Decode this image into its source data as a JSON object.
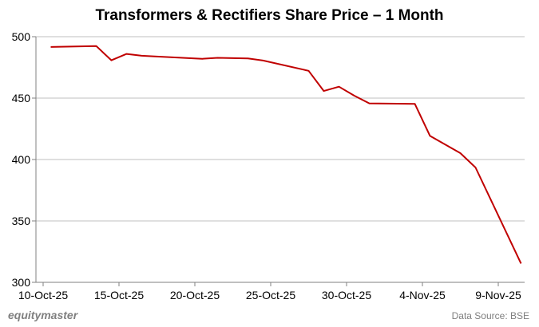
{
  "chart_data": {
    "type": "line",
    "title": "Transformers & Rectifiers Share Price – 1 Month",
    "xlabel": "",
    "ylabel": "",
    "ylim": [
      300,
      500
    ],
    "yticks": [
      "300",
      "350",
      "400",
      "450",
      "500"
    ],
    "xlim": [
      "2025-10-10",
      "2025-11-10"
    ],
    "xticks": [
      {
        "date": "2025-10-10",
        "label": "10-Oct-25"
      },
      {
        "date": "2025-10-15",
        "label": "15-Oct-25"
      },
      {
        "date": "2025-10-20",
        "label": "20-Oct-25"
      },
      {
        "date": "2025-10-25",
        "label": "25-Oct-25"
      },
      {
        "date": "2025-10-30",
        "label": "30-Oct-25"
      },
      {
        "date": "2025-11-04",
        "label": "4-Nov-25"
      },
      {
        "date": "2025-11-09",
        "label": "9-Nov-25"
      }
    ],
    "grid": "horizontal",
    "line_color": "#c00000",
    "series": [
      {
        "x": [
          "2025-10-10",
          "2025-10-13",
          "2025-10-14",
          "2025-10-15",
          "2025-10-16",
          "2025-10-17",
          "2025-10-20",
          "2025-10-21",
          "2025-10-23",
          "2025-10-24",
          "2025-10-27",
          "2025-10-28",
          "2025-10-29",
          "2025-10-30",
          "2025-10-31",
          "2025-11-03",
          "2025-11-04",
          "2025-11-06",
          "2025-11-07",
          "2025-11-10"
        ],
        "values": [
          491.6,
          492.4,
          480.8,
          486.0,
          484.5,
          483.8,
          482.0,
          482.8,
          482.3,
          480.6,
          472.2,
          455.8,
          459.3,
          452.0,
          445.7,
          445.3,
          419.2,
          405.2,
          393.5,
          315.3
        ]
      }
    ]
  },
  "footer": {
    "brand": "equitymaster",
    "source": "Data Source: BSE"
  }
}
